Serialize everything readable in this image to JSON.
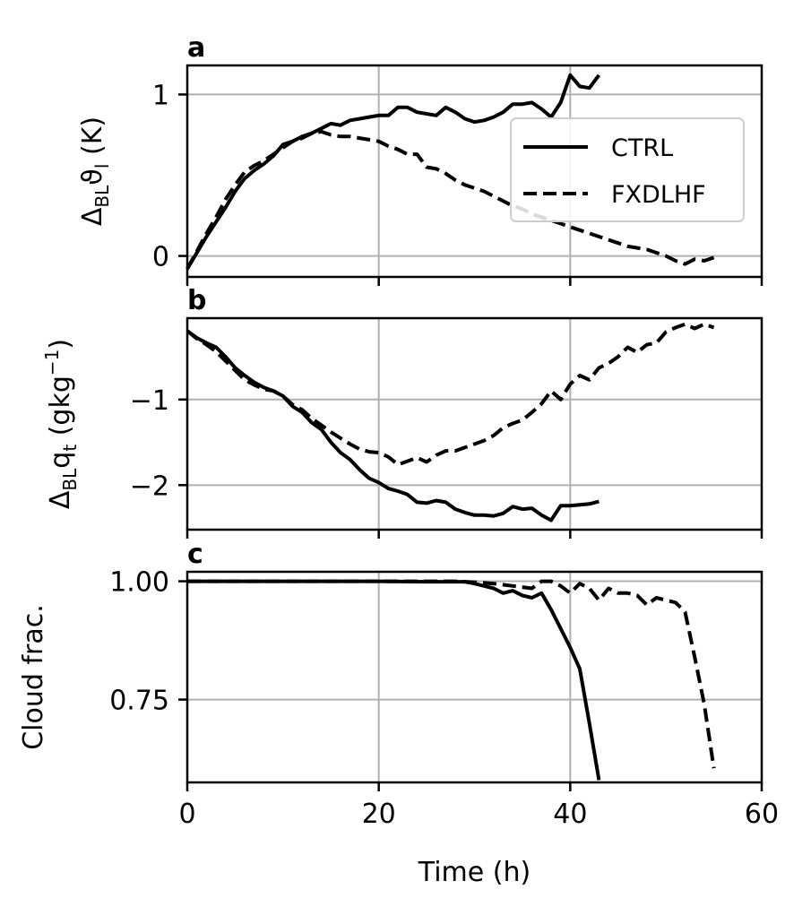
{
  "chart_data": [
    {
      "type": "line",
      "panel_label": "a",
      "ylabel": {
        "prefix": "Δ",
        "sub": "BL",
        "main": "ϑ",
        "main_sub": "l",
        "unit": " (K)"
      },
      "xlim": [
        0,
        60
      ],
      "ylim": [
        -0.13,
        1.18
      ],
      "xticks": [
        0,
        20,
        40,
        60
      ],
      "yticks": [
        0,
        1
      ],
      "yticklabels": [
        "0",
        "1"
      ],
      "grid": true,
      "legend": {
        "placement": "right",
        "entries": [
          "CTRL",
          "FXDLHF"
        ]
      },
      "series": [
        {
          "name": "CTRL",
          "style": "solid",
          "x": [
            0,
            1,
            2,
            3,
            4,
            5,
            6,
            7,
            8,
            9,
            10,
            11,
            12,
            13,
            14,
            15,
            16,
            17,
            18,
            19,
            20,
            21,
            22,
            23,
            24,
            25,
            26,
            27,
            28,
            29,
            30,
            31,
            32,
            33,
            34,
            35,
            36,
            37,
            38,
            39,
            40,
            41,
            42,
            43
          ],
          "y": [
            -0.08,
            0.02,
            0.12,
            0.21,
            0.3,
            0.4,
            0.48,
            0.53,
            0.57,
            0.62,
            0.69,
            0.71,
            0.74,
            0.76,
            0.79,
            0.82,
            0.81,
            0.84,
            0.85,
            0.86,
            0.87,
            0.87,
            0.92,
            0.92,
            0.89,
            0.88,
            0.87,
            0.92,
            0.89,
            0.85,
            0.83,
            0.84,
            0.86,
            0.89,
            0.94,
            0.94,
            0.95,
            0.91,
            0.86,
            0.95,
            1.12,
            1.05,
            1.04,
            1.12
          ]
        },
        {
          "name": "FXDLHF",
          "style": "dashed",
          "x": [
            0,
            1,
            2,
            3,
            4,
            5,
            6,
            7,
            8,
            9,
            10,
            11,
            12,
            13,
            14,
            15,
            16,
            17,
            18,
            19,
            20,
            21,
            22,
            23,
            24,
            25,
            26,
            27,
            28,
            29,
            30,
            31,
            32,
            33,
            34,
            35,
            36,
            37,
            38,
            39,
            40,
            41,
            42,
            43,
            44,
            45,
            46,
            47,
            48,
            49,
            50,
            51,
            52,
            53,
            54,
            55
          ],
          "y": [
            -0.08,
            0.03,
            0.14,
            0.24,
            0.35,
            0.44,
            0.52,
            0.56,
            0.59,
            0.63,
            0.67,
            0.71,
            0.73,
            0.76,
            0.77,
            0.75,
            0.74,
            0.74,
            0.73,
            0.72,
            0.71,
            0.68,
            0.66,
            0.63,
            0.63,
            0.55,
            0.54,
            0.51,
            0.47,
            0.44,
            0.42,
            0.4,
            0.37,
            0.34,
            0.31,
            0.29,
            0.26,
            0.24,
            0.22,
            0.2,
            0.18,
            0.16,
            0.14,
            0.12,
            0.1,
            0.08,
            0.06,
            0.05,
            0.04,
            0.02,
            0.0,
            -0.03,
            -0.05,
            -0.02,
            -0.03,
            -0.01
          ]
        }
      ]
    },
    {
      "type": "line",
      "panel_label": "b",
      "ylabel": {
        "prefix": "Δ",
        "sub": "BL",
        "main": "q",
        "main_sub": "t",
        "unit": " (gkg",
        "unit_sup": "−1",
        "unit_end": ")"
      },
      "xlim": [
        0,
        60
      ],
      "ylim": [
        -2.52,
        -0.05
      ],
      "xticks": [
        0,
        20,
        40,
        60
      ],
      "yticks": [
        -1,
        -2
      ],
      "yticklabels": [
        "−1",
        "−2"
      ],
      "grid": true,
      "series": [
        {
          "name": "CTRL",
          "style": "solid",
          "x": [
            0,
            1,
            2,
            3,
            4,
            5,
            6,
            7,
            8,
            9,
            10,
            11,
            12,
            13,
            14,
            15,
            16,
            17,
            18,
            19,
            20,
            21,
            22,
            23,
            24,
            25,
            26,
            27,
            28,
            29,
            30,
            31,
            32,
            33,
            34,
            35,
            36,
            37,
            38,
            39,
            40,
            41,
            42,
            43
          ],
          "y": [
            -0.2,
            -0.28,
            -0.34,
            -0.39,
            -0.5,
            -0.63,
            -0.72,
            -0.8,
            -0.86,
            -0.9,
            -0.96,
            -1.08,
            -1.15,
            -1.27,
            -1.35,
            -1.5,
            -1.62,
            -1.7,
            -1.82,
            -1.92,
            -1.97,
            -2.04,
            -2.07,
            -2.11,
            -2.2,
            -2.21,
            -2.18,
            -2.2,
            -2.28,
            -2.32,
            -2.35,
            -2.35,
            -2.36,
            -2.33,
            -2.25,
            -2.28,
            -2.27,
            -2.35,
            -2.41,
            -2.24,
            -2.24,
            -2.23,
            -2.22,
            -2.19
          ]
        },
        {
          "name": "FXDLHF",
          "style": "dashed",
          "x": [
            0,
            1,
            2,
            3,
            4,
            5,
            6,
            7,
            8,
            9,
            10,
            11,
            12,
            13,
            14,
            15,
            16,
            17,
            18,
            19,
            20,
            21,
            22,
            23,
            24,
            25,
            26,
            27,
            28,
            29,
            30,
            31,
            32,
            33,
            34,
            35,
            36,
            37,
            38,
            39,
            40,
            41,
            42,
            43,
            44,
            45,
            46,
            47,
            48,
            49,
            50,
            51,
            52,
            53,
            54,
            55
          ],
          "y": [
            -0.2,
            -0.29,
            -0.36,
            -0.44,
            -0.55,
            -0.66,
            -0.77,
            -0.83,
            -0.88,
            -0.9,
            -0.96,
            -1.06,
            -1.12,
            -1.22,
            -1.3,
            -1.38,
            -1.45,
            -1.52,
            -1.58,
            -1.61,
            -1.62,
            -1.67,
            -1.76,
            -1.72,
            -1.68,
            -1.73,
            -1.65,
            -1.6,
            -1.6,
            -1.56,
            -1.52,
            -1.48,
            -1.42,
            -1.33,
            -1.28,
            -1.24,
            -1.15,
            -1.05,
            -0.9,
            -1.0,
            -0.82,
            -0.72,
            -0.77,
            -0.63,
            -0.58,
            -0.5,
            -0.39,
            -0.45,
            -0.36,
            -0.34,
            -0.21,
            -0.16,
            -0.12,
            -0.17,
            -0.12,
            -0.16
          ]
        }
      ]
    },
    {
      "type": "line",
      "panel_label": "c",
      "ylabel": {
        "main": "Cloud frac."
      },
      "xlabel": "Time (h)",
      "xlim": [
        0,
        60
      ],
      "ylim": [
        0.575,
        1.02
      ],
      "xticks": [
        0,
        20,
        40,
        60
      ],
      "xticklabels": [
        "0",
        "20",
        "40",
        "60"
      ],
      "yticks": [
        1.0,
        0.75
      ],
      "yticklabels": [
        "1.00",
        "0.75"
      ],
      "grid": true,
      "series": [
        {
          "name": "CTRL",
          "style": "solid",
          "x": [
            0,
            5,
            10,
            15,
            20,
            25,
            29,
            30,
            31,
            32,
            33,
            34,
            35,
            36,
            37,
            38,
            39,
            40,
            41,
            42,
            43
          ],
          "y": [
            1.0,
            1.0,
            1.0,
            1.0,
            1.0,
            0.999,
            0.999,
            0.995,
            0.99,
            0.985,
            0.975,
            0.98,
            0.97,
            0.965,
            0.975,
            0.94,
            0.9,
            0.86,
            0.815,
            0.7,
            0.58
          ]
        },
        {
          "name": "FXDLHF",
          "style": "dashed",
          "x": [
            0,
            10,
            20,
            28,
            30,
            32,
            34,
            36,
            37,
            38,
            39,
            40,
            41,
            42,
            43,
            44,
            45,
            46,
            47,
            48,
            49,
            50,
            51,
            52,
            53,
            54,
            55
          ],
          "y": [
            1.0,
            1.0,
            1.0,
            1.0,
            0.998,
            0.995,
            0.99,
            0.985,
            1.0,
            1.0,
            0.99,
            0.975,
            0.995,
            0.985,
            0.96,
            0.985,
            0.975,
            0.975,
            0.97,
            0.95,
            0.965,
            0.96,
            0.955,
            0.935,
            0.84,
            0.74,
            0.605
          ]
        }
      ]
    }
  ]
}
